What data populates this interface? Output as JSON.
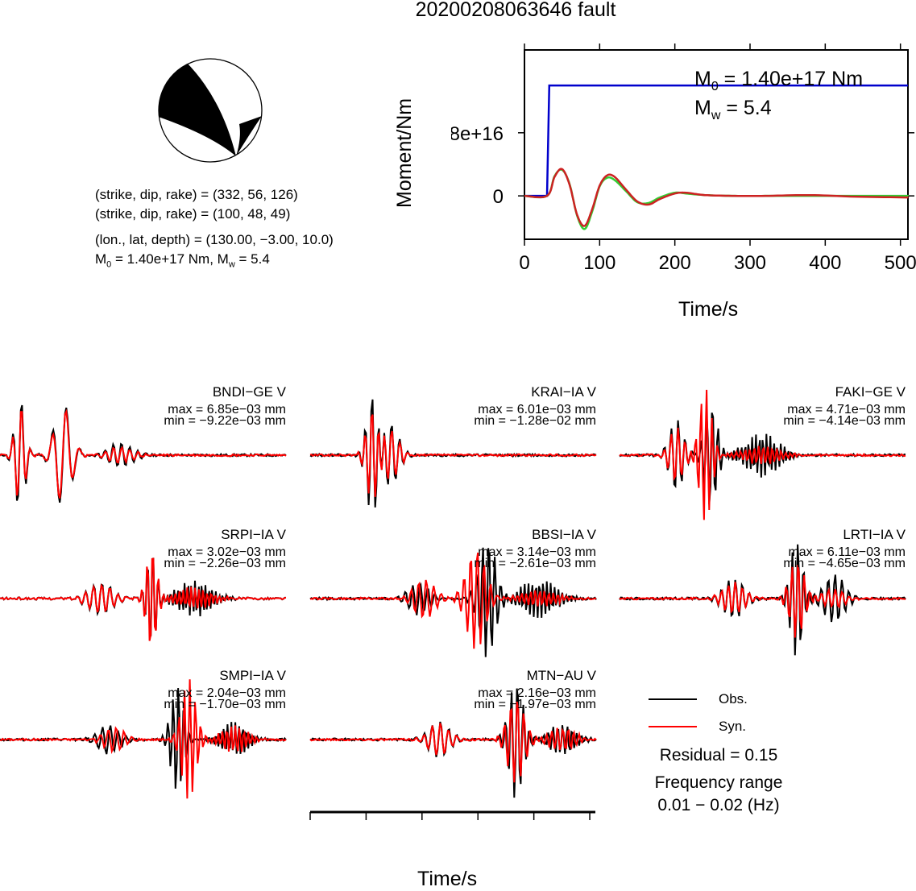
{
  "title": "20200208063646 fault",
  "source": {
    "plane1": "(strike, dip, rake) = (332, 56, 126)",
    "plane2": "(strike, dip, rake) = (100, 48, 49)",
    "location": "(lon., lat, depth) = (130.00, −3.00, 10.0)",
    "moment_line": {
      "m0_prefix": "M",
      "m0_sub": "0",
      "m0_rest": " = 1.40e+17 Nm, M",
      "mw_sub": "w",
      "mw_rest": " = 5.4"
    }
  },
  "moment_panel": {
    "m0": {
      "prefix": "M",
      "sub": "0",
      "rest": " = 1.40e+17 Nm"
    },
    "mw": {
      "prefix": "M",
      "sub": "w",
      "rest": " = 5.4"
    },
    "ylabel": "Moment/Nm",
    "xlabel": "Time/s",
    "yticks": [
      "0",
      "8e+16"
    ],
    "xticks": [
      "0",
      "100",
      "200",
      "300",
      "400",
      "500"
    ]
  },
  "traces": [
    {
      "station": "BNDI−GE V",
      "max": "max = 6.85e−03 mm",
      "min": "min = −9.22e−03 mm"
    },
    {
      "station": "KRAI−IA V",
      "max": "max = 6.01e−03 mm",
      "min": "min = −1.28e−02 mm"
    },
    {
      "station": "FAKI−GE V",
      "max": "max = 4.71e−03 mm",
      "min": "min = −4.14e−03 mm"
    },
    {
      "station": "SRPI−IA V",
      "max": "max = 3.02e−03 mm",
      "min": "min = −2.26e−03 mm"
    },
    {
      "station": "BBSI−IA V",
      "max": "max = 3.14e−03 mm",
      "min": "min = −2.61e−03 mm"
    },
    {
      "station": "LRTI−IA V",
      "max": "max = 6.11e−03 mm",
      "min": "min = −4.65e−03 mm"
    },
    {
      "station": "SMPI−IA V",
      "max": "max = 2.04e−03 mm",
      "min": "min = −1.70e−03 mm"
    },
    {
      "station": "MTN−AU V",
      "max": "max = 2.16e−03 mm",
      "min": "min = −1.97e−03 mm"
    }
  ],
  "legend": {
    "obs": "Obs.",
    "syn": "Syn."
  },
  "residual": "Residual = 0.15",
  "freq_title": "Frequency range",
  "freq_value": "0.01 − 0.02 (Hz)",
  "waveform_axis": {
    "xlabel": "Time/s",
    "xticks": [
      "0",
      "100",
      "200",
      "300",
      "400",
      "500"
    ]
  },
  "colors": {
    "observed": "#000000",
    "synthetic": "#ff0000",
    "moment_cumulative": "#0000cc",
    "moment_rate_green": "#33cc33"
  },
  "chart_data": [
    {
      "type": "line",
      "title": "",
      "xlabel": "Time/s",
      "ylabel": "Moment/Nm",
      "xlim": [
        0,
        510
      ],
      "ylim": [
        -5.5e+16,
        1.85e+17
      ],
      "yticks": [
        0,
        8e+16
      ],
      "xticks": [
        0,
        100,
        200,
        300,
        400,
        500
      ],
      "series": [
        {
          "color": "#0000cc",
          "x": [
            0,
            30,
            33,
            510
          ],
          "y": [
            0,
            0,
            1.4e+17,
            1.4e+17
          ]
        },
        {
          "color": "#33cc33",
          "x": [
            0,
            30,
            40,
            50,
            60,
            70,
            80,
            90,
            100,
            110,
            120,
            135,
            150,
            165,
            180,
            200,
            215,
            240,
            280,
            320,
            380,
            440,
            510
          ],
          "y": [
            0,
            0,
            2.5e+16,
            3.3e+16,
            1.5e+16,
            -2.5e+16,
            -4.2e+16,
            -2e+16,
            1.2e+16,
            2.3e+16,
            2e+16,
            6000000000000000.0,
            -8000000000000000.0,
            -9000000000000000.0,
            -2000000000000000.0,
            4000000000000000.0,
            3000000000000000.0,
            1000000000000000.0,
            0,
            0,
            0,
            0,
            0
          ]
        },
        {
          "color": "#cc2222",
          "x": [
            0,
            30,
            40,
            50,
            60,
            70,
            80,
            90,
            100,
            110,
            120,
            135,
            150,
            165,
            180,
            200,
            215,
            240,
            280,
            320,
            380,
            440,
            510
          ],
          "y": [
            0,
            0,
            2.4e+16,
            3.4e+16,
            1.4e+16,
            -2.4e+16,
            -3.8e+16,
            -1.7e+16,
            1.3e+16,
            2.6e+16,
            2.4e+16,
            8000000000000000.0,
            -7000000000000000.0,
            -1.1e+16,
            -4000000000000000.0,
            3000000000000000.0,
            4000000000000000.0,
            1000000000000000.0,
            0,
            0,
            1000000000000000.0,
            -1000000000000000.0,
            -2000000000000000.0
          ]
        }
      ]
    },
    {
      "type": "line",
      "title": "",
      "xlabel": "Time/s",
      "xlim": [
        0,
        510
      ],
      "xticks": [
        0,
        100,
        200,
        300,
        400,
        500
      ],
      "series": [
        {
          "name": "Obs.",
          "color": "#000000"
        },
        {
          "name": "Syn.",
          "color": "#ff0000"
        }
      ]
    }
  ]
}
